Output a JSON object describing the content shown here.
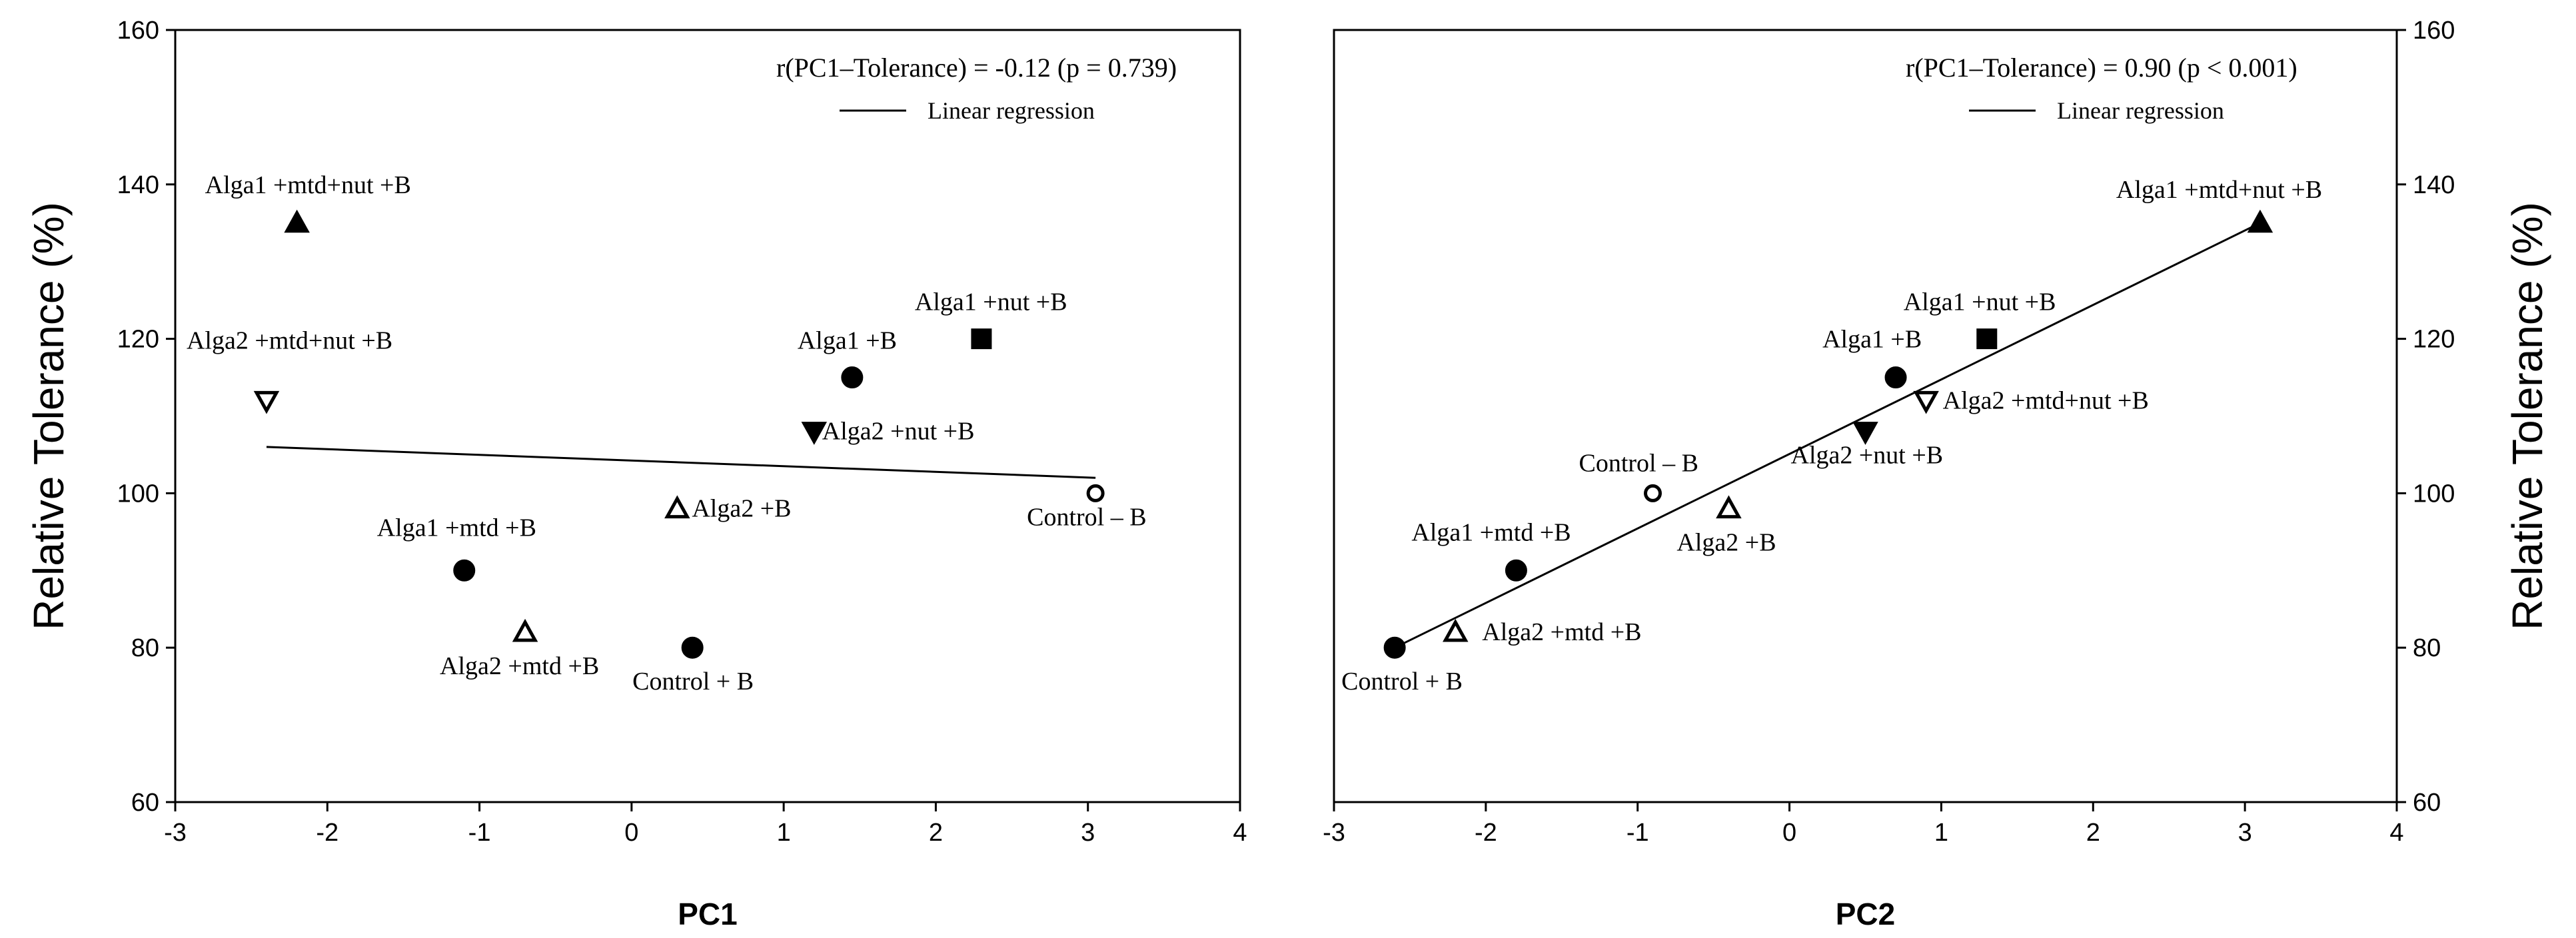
{
  "chart_data": [
    {
      "type": "scatter",
      "title": "",
      "xlabel": "PC1",
      "ylabel": "Relative Tolerance (%)",
      "xlim": [
        -3,
        4
      ],
      "ylim": [
        60,
        160
      ],
      "xticks": [
        -3,
        -2,
        -1,
        0,
        1,
        2,
        3,
        4
      ],
      "yticks": [
        60,
        80,
        100,
        120,
        140,
        160
      ],
      "y_axis_side": "left",
      "annotation": "r(PC1–Tolerance) = -0.12 (p = 0.739)",
      "legend": {
        "label": "Linear regression",
        "placement": "top-right"
      },
      "regression": {
        "x": [
          -2.4,
          3.05
        ],
        "y": [
          106,
          102
        ]
      },
      "points": [
        {
          "label": "Alga1 +mtd+nut +B",
          "x": -2.2,
          "y": 135,
          "marker": "triangle-up-filled"
        },
        {
          "label": "Alga2 +mtd+nut +B",
          "x": -2.4,
          "y": 112,
          "marker": "triangle-down-open"
        },
        {
          "label": "Alga1 +mtd +B",
          "x": -1.1,
          "y": 90,
          "marker": "circle-filled"
        },
        {
          "label": "Alga2 +mtd +B",
          "x": -0.7,
          "y": 82,
          "marker": "triangle-up-open"
        },
        {
          "label": "Alga2 +B",
          "x": 0.3,
          "y": 98,
          "marker": "triangle-up-open"
        },
        {
          "label": "Control + B",
          "x": 0.4,
          "y": 80,
          "marker": "circle-filled"
        },
        {
          "label": "Alga2 +nut +B",
          "x": 1.2,
          "y": 108,
          "marker": "triangle-down-filled"
        },
        {
          "label": "Alga1 +B",
          "x": 1.45,
          "y": 115,
          "marker": "circle-filled"
        },
        {
          "label": "Alga1 +nut +B",
          "x": 2.3,
          "y": 120,
          "marker": "square-filled"
        },
        {
          "label": "Control – B",
          "x": 3.05,
          "y": 100,
          "marker": "circle-open"
        }
      ]
    },
    {
      "type": "scatter",
      "title": "",
      "xlabel": "PC2",
      "ylabel": "Relative Tolerance (%)",
      "xlim": [
        -3,
        4
      ],
      "ylim": [
        60,
        160
      ],
      "xticks": [
        -3,
        -2,
        -1,
        0,
        1,
        2,
        3,
        4
      ],
      "yticks": [
        60,
        80,
        100,
        120,
        140,
        160
      ],
      "y_axis_side": "right",
      "annotation": "r(PC1–Tolerance) = 0.90 (p < 0.001)",
      "legend": {
        "label": "Linear regression",
        "placement": "top-right"
      },
      "regression": {
        "x": [
          -2.6,
          3.1
        ],
        "y": [
          80,
          135
        ]
      },
      "points": [
        {
          "label": "Alga1 +mtd+nut +B",
          "x": 3.1,
          "y": 135,
          "marker": "triangle-up-filled"
        },
        {
          "label": "Alga1 +nut +B",
          "x": 1.3,
          "y": 120,
          "marker": "square-filled"
        },
        {
          "label": "Alga1 +B",
          "x": 0.7,
          "y": 115,
          "marker": "circle-filled"
        },
        {
          "label": "Alga2 +mtd+nut +B",
          "x": 0.9,
          "y": 112,
          "marker": "triangle-down-open"
        },
        {
          "label": "Alga2 +nut +B",
          "x": 0.5,
          "y": 108,
          "marker": "triangle-down-filled"
        },
        {
          "label": "Control – B",
          "x": -0.9,
          "y": 100,
          "marker": "circle-open"
        },
        {
          "label": "Alga2 +B",
          "x": -0.4,
          "y": 98,
          "marker": "triangle-up-open"
        },
        {
          "label": "Alga1 +mtd +B",
          "x": -1.8,
          "y": 90,
          "marker": "circle-filled"
        },
        {
          "label": "Alga2 +mtd +B",
          "x": -2.2,
          "y": 82,
          "marker": "triangle-up-open"
        },
        {
          "label": "Control + B",
          "x": -2.6,
          "y": 80,
          "marker": "circle-filled"
        }
      ]
    }
  ]
}
